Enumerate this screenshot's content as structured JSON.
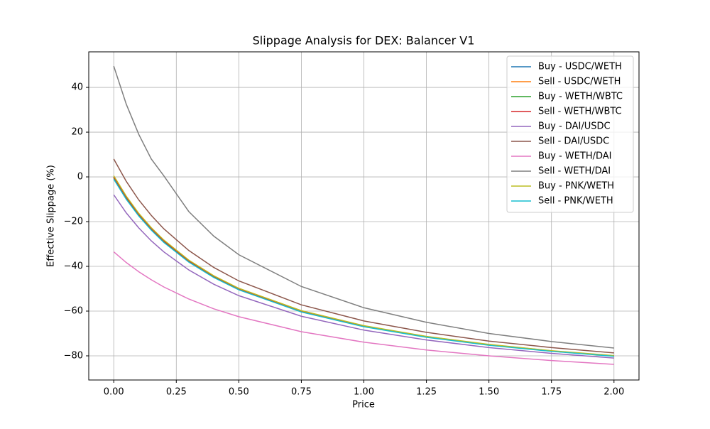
{
  "chart_data": {
    "type": "line",
    "title": "Slippage Analysis for DEX: Balancer V1",
    "x_label": "Price",
    "y_label": "Effective Slippage (%)",
    "x": [
      0,
      0.05,
      0.1,
      0.15,
      0.2,
      0.3,
      0.4,
      0.5,
      0.75,
      1,
      1.25,
      1.5,
      1.75,
      2
    ],
    "series": [
      {
        "name": "Buy - USDC/WETH",
        "color": "#1f77b4",
        "values": [
          0,
          -9.1,
          -16.7,
          -23.1,
          -28.6,
          -37.5,
          -44.4,
          -50,
          -60,
          -66.7,
          -71.4,
          -75,
          -77.8,
          -80
        ]
      },
      {
        "name": "Sell - USDC/WETH",
        "color": "#ff7f0e",
        "values": [
          -0.5,
          -9.5,
          -17.1,
          -23.5,
          -28.9,
          -37.8,
          -44.7,
          -50.2,
          -60.2,
          -66.8,
          -71.6,
          -75.1,
          -77.9,
          -80.1
        ]
      },
      {
        "name": "Buy - WETH/WBTC",
        "color": "#2ca02c",
        "values": [
          -0.3,
          -9.4,
          -16.9,
          -23.3,
          -28.8,
          -37.7,
          -44.6,
          -50.2,
          -60.1,
          -66.8,
          -71.5,
          -75.1,
          -77.9,
          -80.1
        ]
      },
      {
        "name": "Sell - WETH/WBTC",
        "color": "#d62728",
        "values": [
          0,
          -9.1,
          -16.7,
          -23.1,
          -28.6,
          -37.5,
          -44.4,
          -50,
          -60,
          -66.7,
          -71.4,
          -75,
          -77.8,
          -80
        ]
      },
      {
        "name": "Buy - DAI/USDC",
        "color": "#9467bd",
        "values": [
          -8,
          -16.1,
          -22.8,
          -28.6,
          -33.5,
          -41.6,
          -48,
          -53.1,
          -62.3,
          -68.5,
          -72.9,
          -76.3,
          -78.9,
          -81
        ]
      },
      {
        "name": "Sell - DAI/USDC",
        "color": "#8c564b",
        "values": [
          8,
          -2,
          -10.3,
          -17.2,
          -23.2,
          -32.9,
          -40.5,
          -46.5,
          -57.2,
          -64.4,
          -69.5,
          -73.4,
          -76.3,
          -78.7
        ]
      },
      {
        "name": "Buy - WETH/DAI",
        "color": "#e377c2",
        "values": [
          -33.5,
          -38.3,
          -42.4,
          -46,
          -49.2,
          -54.6,
          -59,
          -62.5,
          -69.2,
          -73.9,
          -77.4,
          -80,
          -82.1,
          -83.8
        ]
      },
      {
        "name": "Sell - WETH/DAI",
        "color": "#7f7f7f",
        "values": [
          49.5,
          32.5,
          19,
          8,
          0.5,
          -15.5,
          -26.5,
          -34.8,
          -49,
          -58.5,
          -65,
          -70,
          -73.6,
          -76.5
        ]
      },
      {
        "name": "Buy - PNK/WETH",
        "color": "#bcbd22",
        "values": [
          0.5,
          -8.6,
          -16.3,
          -22.7,
          -28.2,
          -37.2,
          -44.2,
          -49.8,
          -59.8,
          -66.5,
          -71.3,
          -74.9,
          -77.7,
          -79.9
        ]
      },
      {
        "name": "Sell - PNK/WETH",
        "color": "#17becf",
        "values": [
          -1,
          -10,
          -17.5,
          -23.8,
          -29.3,
          -38.1,
          -45,
          -50.5,
          -60.4,
          -67,
          -71.7,
          -75.3,
          -78,
          -80.2
        ]
      }
    ],
    "xlim": [
      -0.1,
      2.1
    ],
    "ylim": [
      -90.8,
      55.9
    ],
    "xticks": [
      {
        "value": 0,
        "label": "0.00"
      },
      {
        "value": 0.25,
        "label": "0.25"
      },
      {
        "value": 0.5,
        "label": "0.50"
      },
      {
        "value": 0.75,
        "label": "0.75"
      },
      {
        "value": 1,
        "label": "1.00"
      },
      {
        "value": 1.25,
        "label": "1.25"
      },
      {
        "value": 1.5,
        "label": "1.50"
      },
      {
        "value": 1.75,
        "label": "1.75"
      },
      {
        "value": 2,
        "label": "2.00"
      }
    ],
    "yticks": [
      {
        "value": -80,
        "label": "−80"
      },
      {
        "value": -60,
        "label": "−60"
      },
      {
        "value": -40,
        "label": "−40"
      },
      {
        "value": -20,
        "label": "−20"
      },
      0,
      20,
      40
    ],
    "grid": true,
    "legend": "upper right"
  }
}
